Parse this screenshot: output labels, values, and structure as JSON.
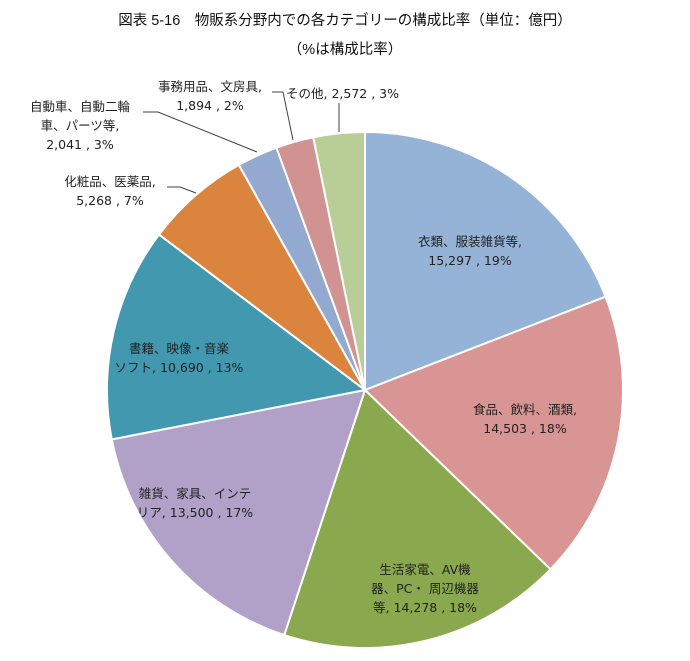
{
  "title": {
    "line1": "図表 5-16　物販系分野内での各カテゴリーの構成比率（単位：億円）",
    "line2": "（%は構成比率）"
  },
  "chart_data": {
    "type": "pie",
    "title": "図表 5-16 物販系分野内での各カテゴリーの構成比率（単位：億円）",
    "subtitle": "（%は構成比率）",
    "unit": "億円",
    "start_angle_deg": 0,
    "direction": "clockwise",
    "center": [
      365,
      390
    ],
    "radius": 258,
    "slices": [
      {
        "label": "衣類、服装雑貨等",
        "value": 15297,
        "percent": "19%",
        "color": "#95B3D7"
      },
      {
        "label": "食品、飲料、酒類",
        "value": 14503,
        "percent": "18%",
        "color": "#D99594"
      },
      {
        "label": "生活家電、AV機器、PC・周辺機器等",
        "value": 14278,
        "percent": "18%",
        "color": "#8AA94F"
      },
      {
        "label": "雑貨、家具、インテリア",
        "value": 13500,
        "percent": "17%",
        "color": "#B1A0C7"
      },
      {
        "label": "書籍、映像・音楽ソフト",
        "value": 10690,
        "percent": "13%",
        "color": "#4198AF"
      },
      {
        "label": "化粧品、医薬品",
        "value": 5268,
        "percent": "7%",
        "color": "#DB843D"
      },
      {
        "label": "自動車、自動二輪車、パーツ等",
        "value": 2041,
        "percent": "3%",
        "color": "#93A9CF"
      },
      {
        "label": "事務用品、文房具",
        "value": 1894,
        "percent": "2%",
        "color": "#D19392"
      },
      {
        "label": "その他",
        "value": 2572,
        "percent": "3%",
        "color": "#B9CD96"
      }
    ]
  },
  "labels": {
    "apparel": {
      "l1": "衣類、服装雑貨等,",
      "l2": "15,297 , 19%"
    },
    "food": {
      "l1": "食品、飲料、酒類,",
      "l2": "14,503 , 18%"
    },
    "electronics": {
      "l1": "生活家電、AV機",
      "l2": "器、PC・ 周辺機器",
      "l3": "等, 14,278 , 18%"
    },
    "goods": {
      "l1": "雑貨、家具、インテ",
      "l2": "リア, 13,500 , 17%"
    },
    "books": {
      "l1": "書籍、映像・音楽",
      "l2": "ソフト, 10,690 , 13%"
    },
    "cosmetics": {
      "l1": "化粧品、医薬品,",
      "l2": "5,268 , 7%"
    },
    "auto": {
      "l1": "自動車、自動二輪",
      "l2": "車、パーツ等,",
      "l3": "2,041 , 3%"
    },
    "office": {
      "l1": "事務用品、文房具,",
      "l2": "1,894 , 2%"
    },
    "other": {
      "l1": "その他, 2,572 , 3%"
    }
  }
}
